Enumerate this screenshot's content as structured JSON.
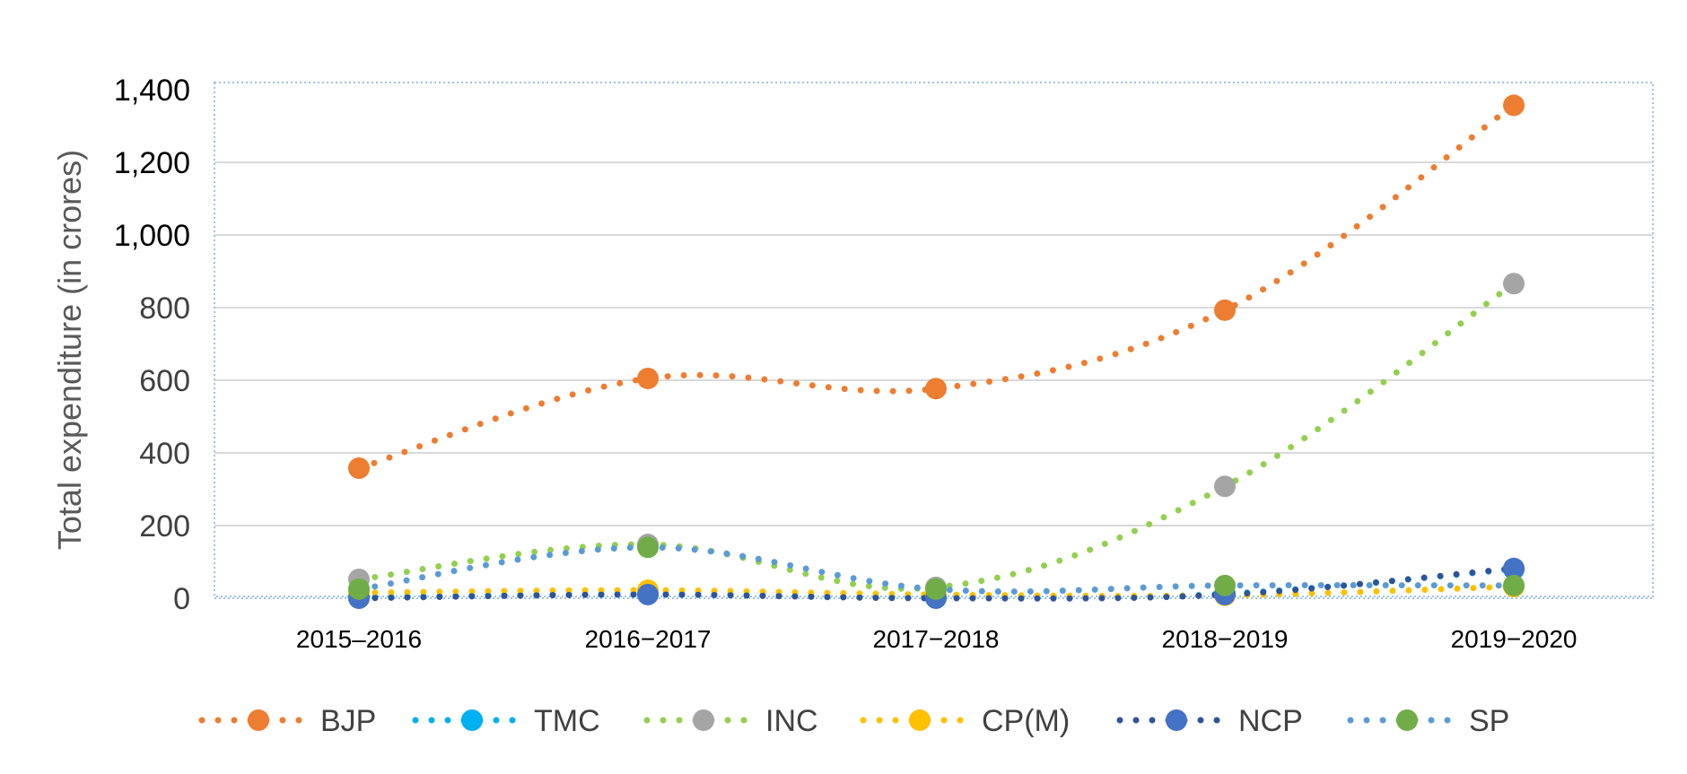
{
  "chart_data": {
    "type": "line",
    "ylabel": "Total expenditure (in crores)",
    "xlabel": "",
    "categories": [
      "2015–2016",
      "2016−2017",
      "2017−2018",
      "2018−2019",
      "2019−2020"
    ],
    "ylim": [
      0,
      1400
    ],
    "yticks": [
      0,
      200,
      400,
      600,
      800,
      1000,
      1200,
      1400
    ],
    "ytick_labels": [
      "0",
      "200",
      "400",
      "600",
      "800",
      "1,000",
      "1,200",
      "1,400"
    ],
    "grid": true,
    "legend_position": "bottom",
    "series": [
      {
        "name": "BJP",
        "color": "#ED7D31",
        "values": [
          358,
          605,
          577,
          793,
          1357
        ]
      },
      {
        "name": "TMC",
        "color": "#00B0F0",
        "values": [
          3,
          12,
          3,
          12,
          80
        ]
      },
      {
        "name": "INC",
        "color": "#A5A5A5",
        "values": [
          52,
          148,
          30,
          308,
          866
        ]
      },
      {
        "name": "CP(M)",
        "color": "#FFC000",
        "values": [
          15,
          22,
          10,
          8,
          32
        ]
      },
      {
        "name": "NCP",
        "color": "#4472C4",
        "values": [
          0,
          10,
          0,
          10,
          82
        ]
      },
      {
        "name": "SP",
        "color": "#70AD47",
        "values": [
          25,
          140,
          25,
          35,
          35
        ]
      }
    ],
    "line_colors": {
      "BJP": "#ED7D31",
      "TMC": "#00B0F0",
      "INC": "#92D050",
      "CP(M)": "#FFC000",
      "NCP": "#2F5597",
      "SP": "#5B9BD5"
    }
  }
}
